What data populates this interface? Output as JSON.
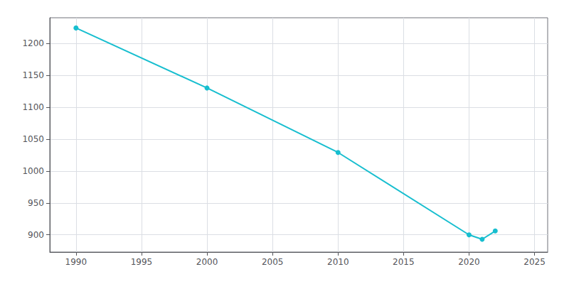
{
  "chart_data": {
    "type": "line",
    "x": [
      1990,
      2000,
      2010,
      2020,
      2021,
      2022
    ],
    "values": [
      1224,
      1130,
      1029,
      900,
      893,
      906
    ],
    "color": "#17becf",
    "marker": "circle",
    "xlim": [
      1988.0,
      2026.0
    ],
    "ylim": [
      873,
      1240
    ],
    "xticks": [
      1990,
      1995,
      2000,
      2005,
      2010,
      2015,
      2020,
      2025
    ],
    "yticks": [
      900,
      950,
      1000,
      1050,
      1100,
      1150,
      1200
    ],
    "grid": true
  }
}
